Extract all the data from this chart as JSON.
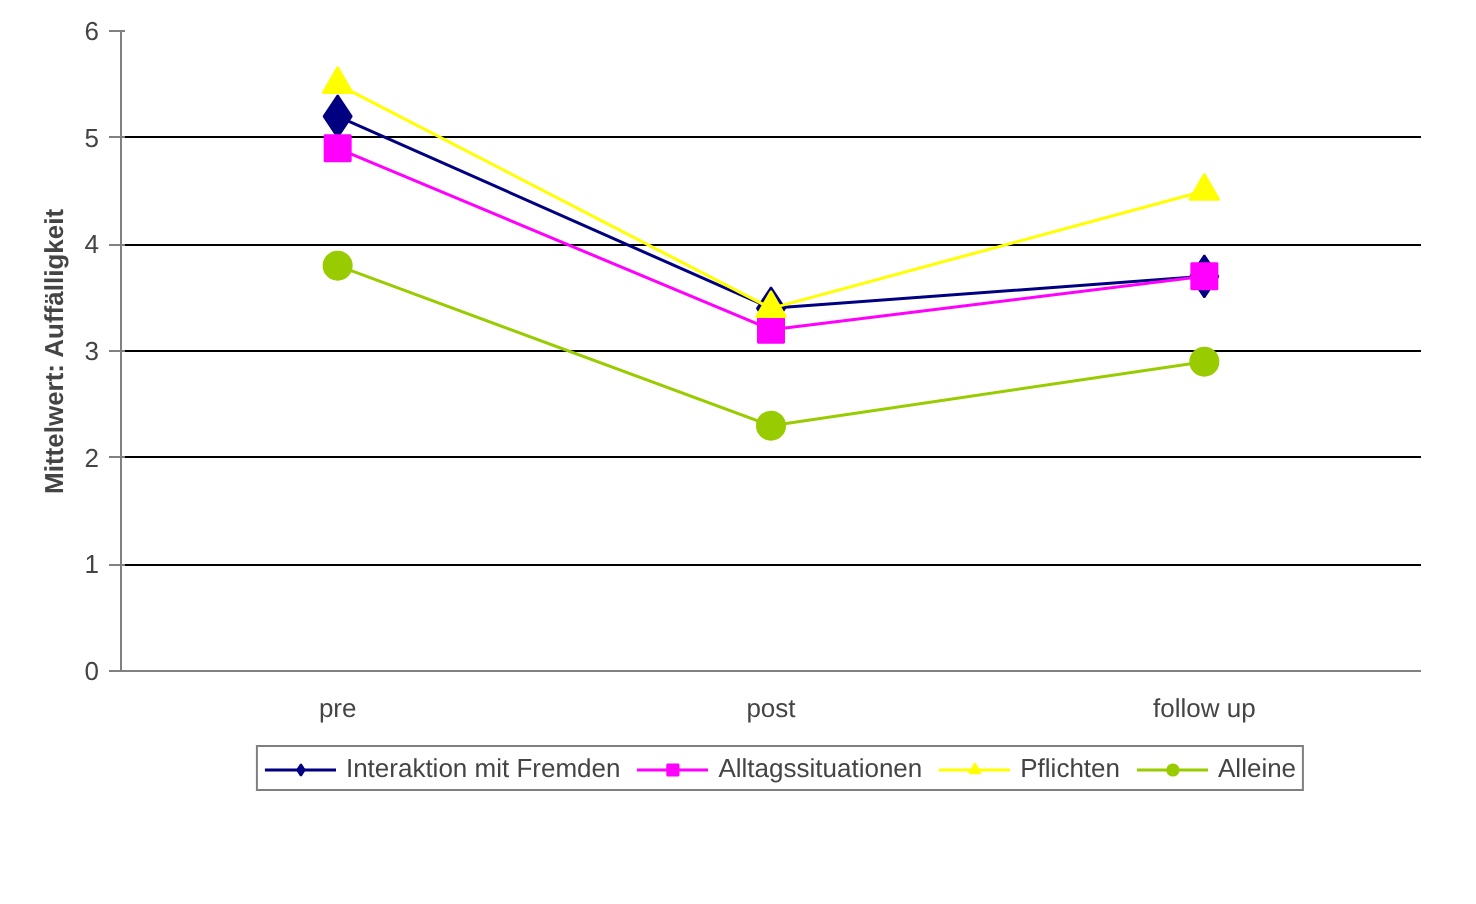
{
  "chart_data": {
    "type": "line",
    "ylabel": "Mittelwert: Auffälligkeit",
    "categories": [
      "pre",
      "post",
      "follow up"
    ],
    "series": [
      {
        "name": "Interaktion mit Fremden",
        "color": "#000080",
        "marker": "diamond",
        "values": [
          5.2,
          3.4,
          3.7
        ]
      },
      {
        "name": "Alltagssituationen",
        "color": "#ff00ff",
        "marker": "square",
        "values": [
          4.9,
          3.2,
          3.7
        ]
      },
      {
        "name": "Pflichten",
        "color": "#ffff00",
        "marker": "triangle",
        "values": [
          5.5,
          3.4,
          4.5
        ]
      },
      {
        "name": "Alleine",
        "color": "#99cc00",
        "marker": "circle",
        "values": [
          3.8,
          2.3,
          2.9
        ]
      }
    ],
    "ylim": [
      0,
      6
    ],
    "yticks": [
      0,
      1,
      2,
      3,
      4,
      5,
      6
    ],
    "grid": "y",
    "legend": "bottom"
  }
}
